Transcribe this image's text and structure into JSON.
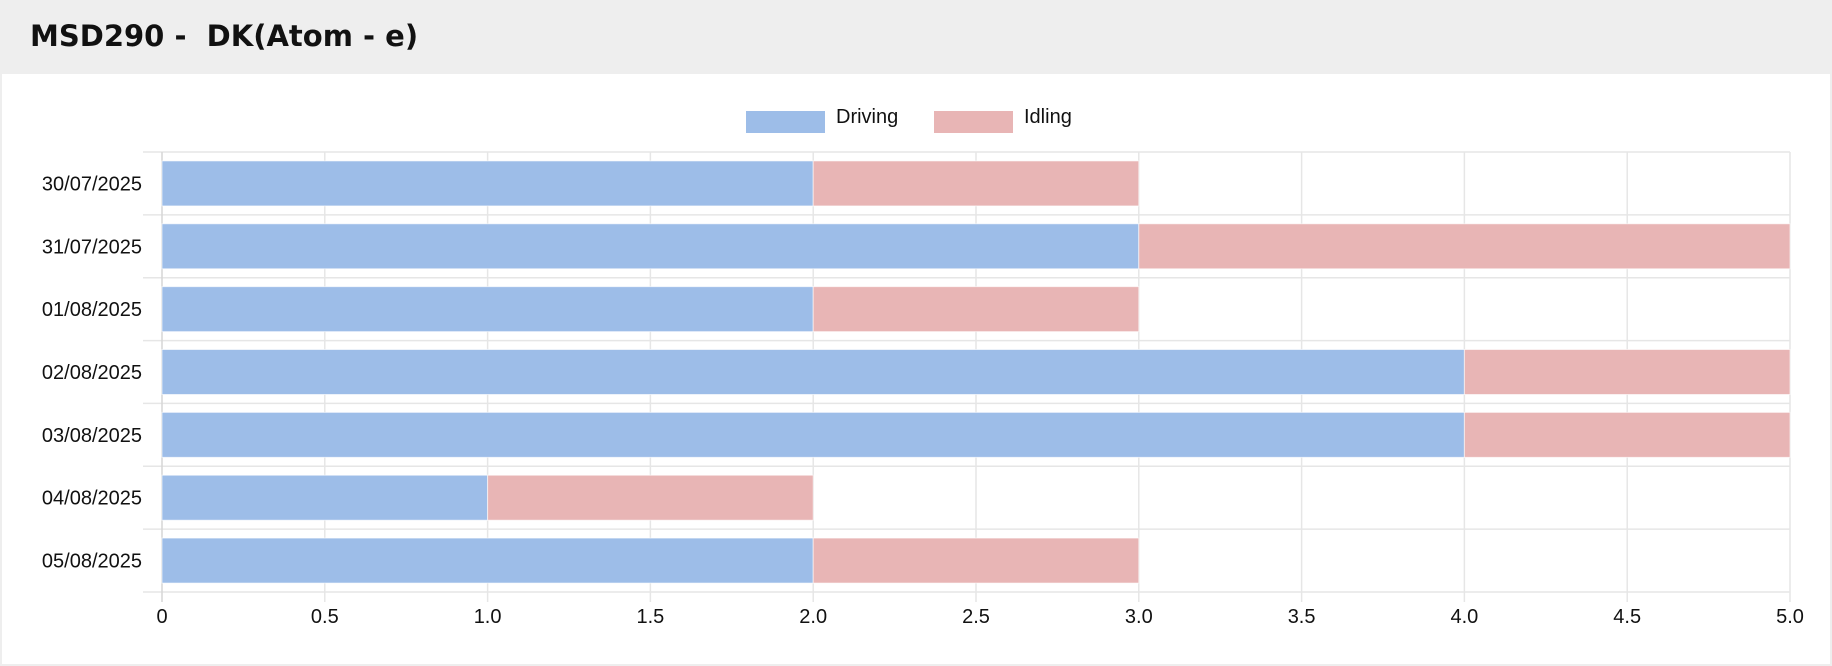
{
  "header": {
    "title": "MSD290 -  DK(Atom - e)"
  },
  "chart_data": {
    "type": "bar",
    "orientation": "horizontal",
    "stacked": true,
    "categories": [
      "30/07/2025",
      "31/07/2025",
      "01/08/2025",
      "02/08/2025",
      "03/08/2025",
      "04/08/2025",
      "05/08/2025"
    ],
    "series": [
      {
        "name": "Driving",
        "color": "#9dbde8",
        "values": [
          2,
          3,
          2,
          4,
          4,
          1,
          2
        ]
      },
      {
        "name": "Idling",
        "color": "#e8b5b5",
        "values": [
          1,
          2,
          1,
          1,
          1,
          1,
          1
        ]
      }
    ],
    "xlim": [
      0,
      5
    ],
    "xticks": [
      "0",
      "0.5",
      "1.0",
      "1.5",
      "2.0",
      "2.5",
      "3.0",
      "3.5",
      "4.0",
      "4.5",
      "5.0"
    ],
    "grid": true,
    "legend_position": "top-center"
  }
}
